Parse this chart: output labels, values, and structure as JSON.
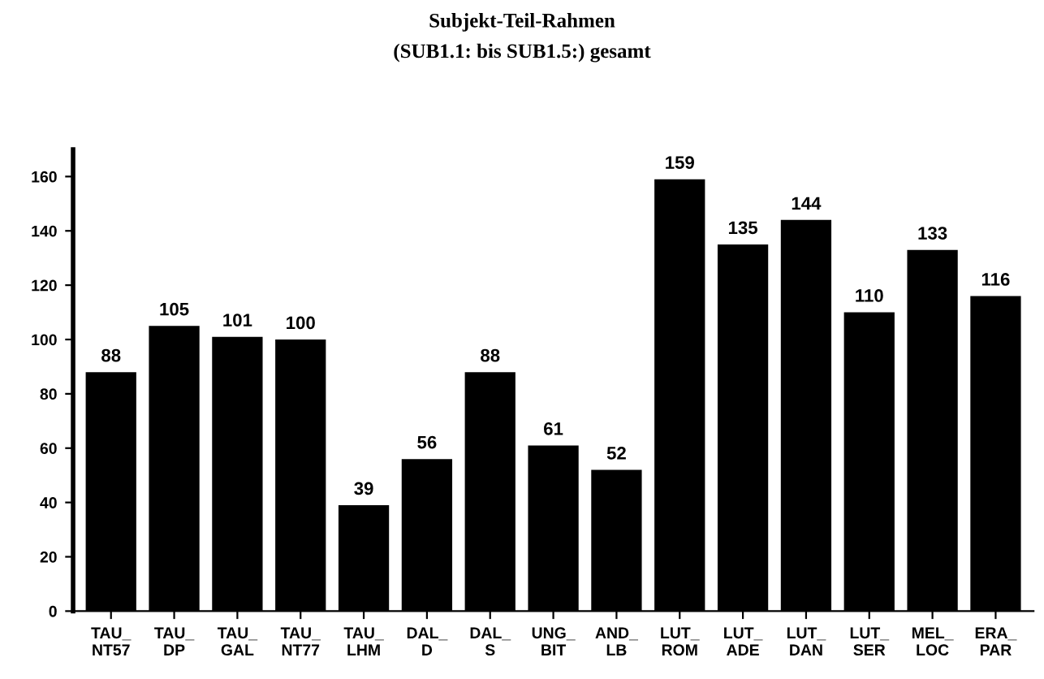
{
  "chart_data": {
    "type": "bar",
    "title": "Subjekt-Teil-Rahmen",
    "subtitle": "(SUB1.1: bis SUB1.5:) gesamt",
    "categories": [
      "TAU_\nNT57",
      "TAU_\nDP",
      "TAU_\nGAL",
      "TAU_\nNT77",
      "TAU_\nLHM",
      "DAL_\nD",
      "DAL_\nS",
      "UNG_\nBIT",
      "AND_\nLB",
      "LUT_\nROM",
      "LUT_\nADE",
      "LUT_\nDAN",
      "LUT_\nSER",
      "MEL_\nLOC",
      "ERA_\nPAR"
    ],
    "values": [
      88,
      105,
      101,
      100,
      39,
      56,
      88,
      61,
      52,
      159,
      135,
      144,
      110,
      133,
      116
    ],
    "color": "#000000",
    "data_labels": true,
    "ylim": [
      0,
      170
    ],
    "yticks": [
      0,
      20,
      40,
      60,
      80,
      100,
      120,
      140,
      160
    ],
    "grid": false
  }
}
